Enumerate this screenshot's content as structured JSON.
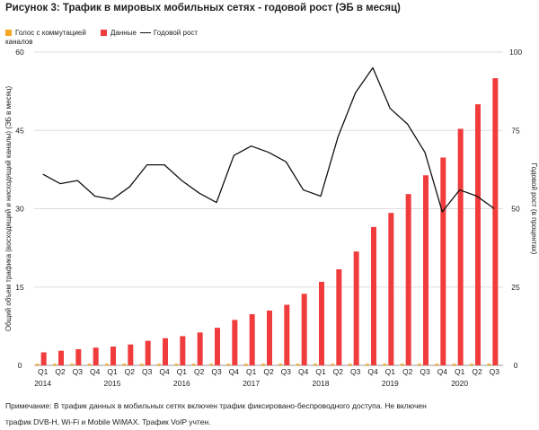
{
  "title": "Рисунок 3: Трафик в мировых мобильных сетях - годовой рост (ЭБ в месяц)",
  "legend": {
    "voice": "Голос с коммутацией каналов",
    "data": "Данные",
    "growth": "Годовой рост"
  },
  "note": {
    "line1": "Примечание: В трафик данных в мобильных сетях включен трафик фиксировано-беспроводного доступа. Не включен",
    "line2": "трафик DVB-H, Wi-Fi и Mobile WiMAX. Трафик VoIP учтен."
  },
  "colors": {
    "voice": "#f5a623",
    "data": "#f03c3c",
    "growth": "#111111",
    "grid": "#dddddd",
    "axis": "#999999"
  },
  "chart_data": {
    "type": "bar",
    "categories": [
      "Q1",
      "Q2",
      "Q3",
      "Q4",
      "Q1",
      "Q2",
      "Q3",
      "Q4",
      "Q1",
      "Q2",
      "Q3",
      "Q4",
      "Q1",
      "Q2",
      "Q3",
      "Q4",
      "Q1",
      "Q2",
      "Q3",
      "Q4",
      "Q1",
      "Q2",
      "Q3",
      "Q4",
      "Q1",
      "Q2",
      "Q3"
    ],
    "years": [
      {
        "label": "2014",
        "start": 0
      },
      {
        "label": "2015",
        "start": 4
      },
      {
        "label": "2016",
        "start": 8
      },
      {
        "label": "2017",
        "start": 12
      },
      {
        "label": "2018",
        "start": 16
      },
      {
        "label": "2019",
        "start": 20
      },
      {
        "label": "2020",
        "start": 24
      }
    ],
    "series": [
      {
        "name": "Голос с коммутацией каналов",
        "axis": "left",
        "kind": "bar",
        "values": [
          0.3,
          0.3,
          0.3,
          0.3,
          0.3,
          0.3,
          0.3,
          0.3,
          0.3,
          0.3,
          0.3,
          0.3,
          0.3,
          0.3,
          0.3,
          0.3,
          0.3,
          0.3,
          0.3,
          0.3,
          0.3,
          0.3,
          0.3,
          0.3,
          0.3,
          0.3,
          0.3
        ]
      },
      {
        "name": "Данные",
        "axis": "left",
        "kind": "bar",
        "values": [
          2.5,
          2.8,
          3.1,
          3.4,
          3.6,
          4.0,
          4.7,
          5.2,
          5.6,
          6.3,
          7.2,
          8.7,
          9.8,
          10.5,
          11.6,
          13.7,
          16.0,
          18.4,
          21.8,
          26.5,
          29.2,
          32.8,
          36.4,
          39.8,
          45.3,
          50.0,
          55.0
        ]
      },
      {
        "name": "Годовой рост",
        "axis": "right",
        "kind": "line",
        "values": [
          61,
          58,
          59,
          54,
          53,
          57,
          64,
          64,
          59,
          55,
          52,
          67,
          70,
          68,
          65,
          56,
          54,
          73,
          87,
          95,
          82,
          77,
          68,
          49,
          56,
          54,
          50
        ]
      }
    ],
    "y_left": {
      "label": "Общий объем трафика (восходящий и нисходящий каналы) (ЭБ в месяц)",
      "ticks": [
        0,
        15,
        30,
        45,
        60
      ],
      "range": [
        0,
        60
      ]
    },
    "y_right": {
      "label": "Годовой рост (в процентах)",
      "ticks": [
        0,
        25,
        50,
        75,
        100
      ],
      "range": [
        0,
        100
      ]
    },
    "grid": "horizontal"
  }
}
